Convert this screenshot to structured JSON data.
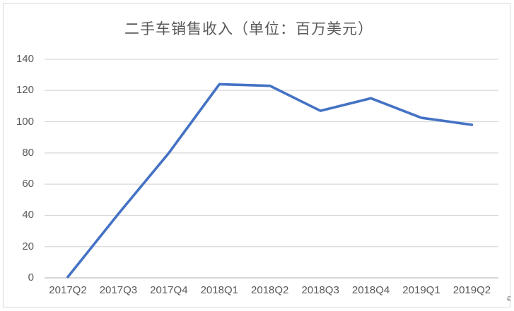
{
  "page": {
    "artifact_glyph": "€"
  },
  "chart_data": {
    "type": "line",
    "title": "二手车销售收入（单位：百万美元）",
    "categories": [
      "2017Q2",
      "2017Q3",
      "2017Q4",
      "2018Q1",
      "2018Q2",
      "2018Q3",
      "2018Q4",
      "2019Q1",
      "2019Q2"
    ],
    "values": [
      0.6,
      41,
      80,
      124,
      123,
      107,
      115,
      102.5,
      98
    ],
    "xlabel": "",
    "ylabel": "",
    "ylim": [
      0,
      140
    ],
    "ytick_interval": 20,
    "yticks": [
      0,
      20,
      40,
      60,
      80,
      100,
      120,
      140
    ],
    "grid": true,
    "legend_position": "none",
    "colors": {
      "line": "#4472C4",
      "gridline": "#D9D9D9",
      "axis_line": "#BFBFBF",
      "text": "#595959",
      "frame_border": "#D9D9D9",
      "background": "#ffffff"
    }
  }
}
